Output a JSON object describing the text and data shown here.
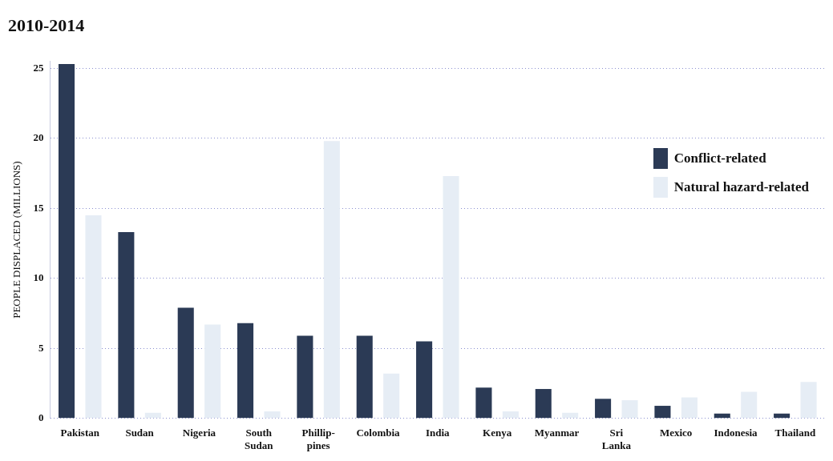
{
  "chart_data": {
    "type": "bar",
    "title": "2010-2014",
    "ylabel": "PEOPLE DISPLACED (MILLIONS)",
    "categories": [
      "Pakistan",
      "Sudan",
      "Nigeria",
      "South Sudan",
      "Phillip-pines",
      "Colombia",
      "India",
      "Kenya",
      "Myanmar",
      "Sri Lanka",
      "Mexico",
      "Indonesia",
      "Thailand"
    ],
    "series": [
      {
        "name": "Conflict-related",
        "color": "#2b3a55",
        "values": [
          25.3,
          13.3,
          7.9,
          6.8,
          5.9,
          5.9,
          5.5,
          2.2,
          2.1,
          1.4,
          0.9,
          0.35,
          0.35
        ]
      },
      {
        "name": "Natural hazard-related",
        "color": "#e6edf5",
        "values": [
          14.5,
          0.4,
          6.7,
          0.5,
          19.8,
          3.2,
          17.3,
          0.5,
          0.4,
          1.3,
          1.5,
          1.9,
          2.6
        ]
      }
    ],
    "ylim": [
      0,
      25.5
    ],
    "yticks": [
      0,
      5,
      10,
      15,
      20,
      25
    ],
    "grid": "y",
    "legend": "right"
  }
}
